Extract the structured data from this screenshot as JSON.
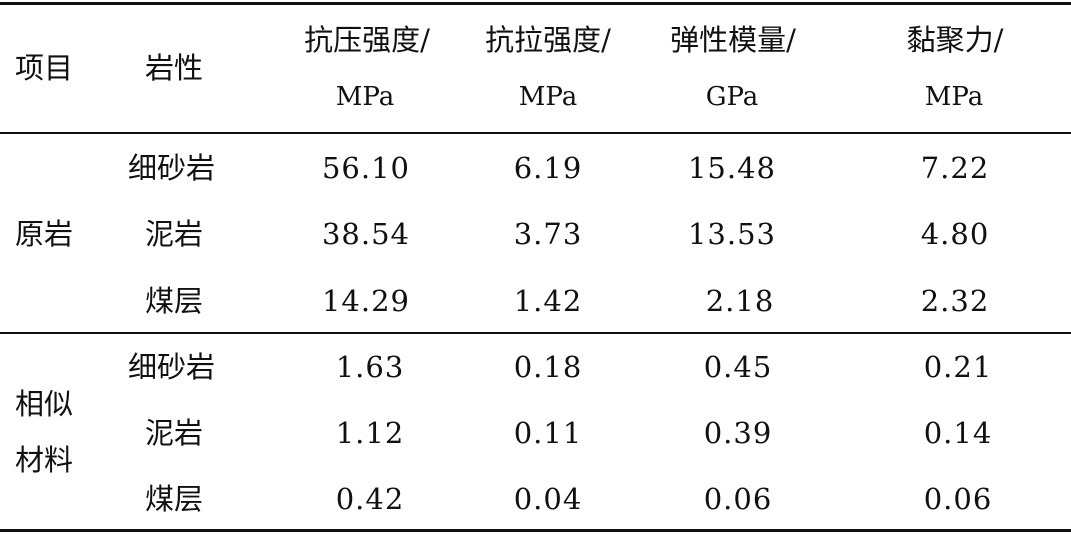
{
  "table": {
    "header": {
      "col_item": "项目",
      "col_lithology": "岩性",
      "columns": [
        {
          "name": "抗压强度/",
          "unit": "MPa"
        },
        {
          "name": "抗拉强度/",
          "unit": "MPa"
        },
        {
          "name": "弹性模量/",
          "unit": "GPa"
        },
        {
          "name": "黏聚力/",
          "unit": "MPa"
        }
      ]
    },
    "groups": [
      {
        "label": "原岩",
        "rows": [
          {
            "lithology": "细砂岩",
            "values": [
              "56.10",
              "6.19",
              "15.48",
              "7.22"
            ]
          },
          {
            "lithology": "泥岩",
            "values": [
              "38.54",
              "3.73",
              "13.53",
              "4.80"
            ]
          },
          {
            "lithology": "煤层",
            "values": [
              "14.29",
              "1.42",
              "2.18",
              "2.32"
            ]
          }
        ]
      },
      {
        "label_line1": "相似",
        "label_line2": "材料",
        "rows": [
          {
            "lithology": "细砂岩",
            "values": [
              "1.63",
              "0.18",
              "0.45",
              "0.21"
            ]
          },
          {
            "lithology": "泥岩",
            "values": [
              "1.12",
              "0.11",
              "0.39",
              "0.14"
            ]
          },
          {
            "lithology": "煤层",
            "values": [
              "0.42",
              "0.04",
              "0.06",
              "0.06"
            ]
          }
        ]
      }
    ]
  }
}
